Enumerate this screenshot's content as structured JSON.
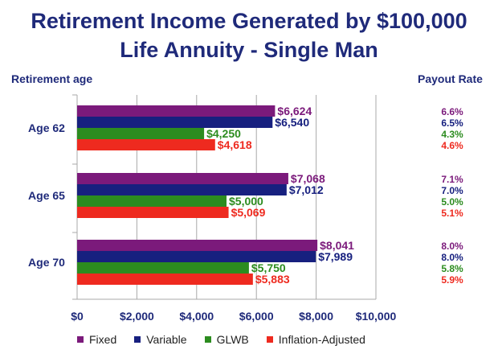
{
  "title_line1": "Retirement Income Generated by $100,000",
  "title_line2": "Life Annuity - Single Man",
  "left_header": "Retirement age",
  "right_header": "Payout Rate",
  "chart_data": {
    "type": "bar",
    "orientation": "horizontal",
    "categories": [
      "Age 62",
      "Age 65",
      "Age 70"
    ],
    "series": [
      {
        "name": "Fixed",
        "color": "#7b1a7b",
        "values": [
          6624,
          7068,
          8041
        ],
        "labels": [
          "$6,624",
          "$7,068",
          "$8,041"
        ],
        "rates": [
          "6.6%",
          "7.1%",
          "8.0%"
        ]
      },
      {
        "name": "Variable",
        "color": "#17207f",
        "values": [
          6540,
          7012,
          7989
        ],
        "labels": [
          "$6,540",
          "$7,012",
          "$7,989"
        ],
        "rates": [
          "6.5%",
          "7.0%",
          "8.0%"
        ]
      },
      {
        "name": "GLWB",
        "color": "#2c8c1f",
        "values": [
          4250,
          5000,
          5750
        ],
        "labels": [
          "$4,250",
          "$5,000",
          "$5,750"
        ],
        "rates": [
          "4.3%",
          "5.0%",
          "5.8%"
        ]
      },
      {
        "name": "Inflation-Adjusted",
        "color": "#ee2a1f",
        "values": [
          4618,
          5069,
          5883
        ],
        "labels": [
          "$4,618",
          "$5,069",
          "$5,883"
        ],
        "rates": [
          "4.6%",
          "5.1%",
          "5.9%"
        ]
      }
    ],
    "xlim": [
      0,
      10000
    ],
    "xticks": [
      0,
      2000,
      4000,
      6000,
      8000,
      10000
    ],
    "xtick_labels": [
      "$0",
      "$2,000",
      "$4,000",
      "$6,000",
      "$8,000",
      "$10,000"
    ],
    "legend_position": "bottom"
  }
}
